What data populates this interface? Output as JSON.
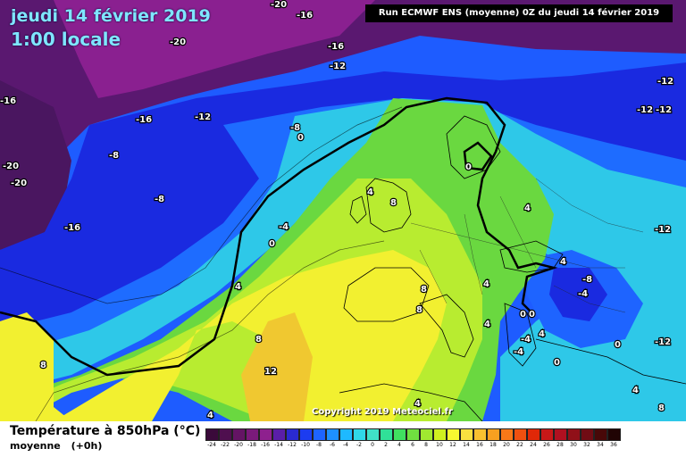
{
  "header": {
    "date": "jeudi 14 février 2019",
    "local_time": "1:00 locale",
    "run_info": "Run ECMWF ENS (moyenne) 0Z du jeudi 14 février 2019"
  },
  "copyright": "Copyright 2019 Meteociel.fr",
  "footer": {
    "variable": "Température à 850hPa (°C)",
    "statistic": "moyenne",
    "lead_time": "(+0h)"
  },
  "color_scale": {
    "values": [
      -24,
      -22,
      -20,
      -18,
      -16,
      -14,
      -12,
      -10,
      -8,
      -6,
      -4,
      -2,
      0,
      2,
      4,
      6,
      8,
      10,
      12,
      14,
      16,
      18,
      20,
      22,
      24,
      26,
      28,
      30,
      32,
      34,
      36
    ],
    "colors": [
      "#3a0a3a",
      "#4f0f4f",
      "#641464",
      "#7a1a7a",
      "#8e208e",
      "#5a1ea8",
      "#2a2ad0",
      "#1c3cf0",
      "#1e64ff",
      "#1e90ff",
      "#1eb9ff",
      "#30d8e8",
      "#40e0c8",
      "#30e098",
      "#40e060",
      "#70e040",
      "#a0e830",
      "#d0f020",
      "#f8f830",
      "#f8e040",
      "#f8c030",
      "#f8a020",
      "#f87818",
      "#f05010",
      "#e02808",
      "#c81818",
      "#b01020",
      "#901018",
      "#700c14",
      "#480808",
      "#200404"
    ]
  },
  "map": {
    "contour_labels": [
      "-20",
      "-16",
      "-20",
      "-16",
      "-12",
      "-16",
      "-12",
      "-16",
      "-12",
      "-20",
      "-20",
      "-8",
      "-8",
      "0",
      "-12",
      "-12",
      "-12",
      "-8",
      "-16",
      "-4",
      "0",
      "4",
      "8",
      "0",
      "4",
      "4",
      "4",
      "8",
      "8",
      "4",
      "-12",
      "-8",
      "-4",
      "4",
      "0",
      "0",
      "4",
      "-4",
      "-4",
      "0",
      "0",
      "8",
      "12",
      "4",
      "8",
      "4",
      "8",
      "4"
    ],
    "colors": {
      "polar_purple": "#6e1a6e",
      "deep_blue": "#1a2ae0",
      "blue": "#1e5cff",
      "cyan": "#2ec8e8",
      "green": "#6ad840",
      "yellow_green": "#b8ec30",
      "yellow": "#f2f030",
      "orange_yellow": "#f0c830",
      "isotherm_zero": "#000000"
    }
  }
}
